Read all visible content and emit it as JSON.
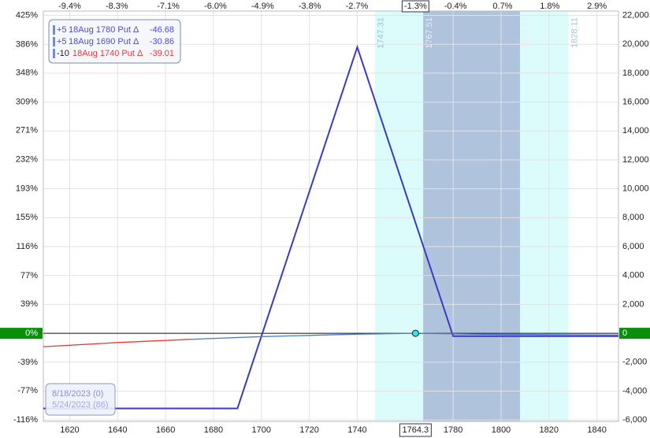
{
  "chart_data": {
    "type": "line",
    "xlim": [
      1609,
      1849
    ],
    "xticks": [
      1620,
      1640,
      1660,
      1680,
      1700,
      1720,
      1740,
      1780,
      1800,
      1820,
      1840
    ],
    "x2lim": [
      -10.015,
      3.403
    ],
    "x2ticks": [
      {
        "value": -9.4,
        "label": "-9.4%"
      },
      {
        "value": -8.3,
        "label": "-8.3%"
      },
      {
        "value": -7.1,
        "label": "-7.1%"
      },
      {
        "value": -6.0,
        "label": "-6.0%"
      },
      {
        "value": -4.9,
        "label": "-4.9%"
      },
      {
        "value": -3.8,
        "label": "-3.8%"
      },
      {
        "value": -2.7,
        "label": "-2.7%"
      },
      {
        "value": -0.4,
        "label": "-0.4%"
      },
      {
        "value": 0.7,
        "label": "0.7%"
      },
      {
        "value": 1.8,
        "label": "1.8%"
      },
      {
        "value": 2.9,
        "label": "2.9%"
      }
    ],
    "ylim": [
      -6100,
      22300
    ],
    "yticks": [
      {
        "value": 22000,
        "label": "22,000"
      },
      {
        "value": 20000,
        "label": "20,000"
      },
      {
        "value": 18000,
        "label": "18,000"
      },
      {
        "value": 16000,
        "label": "16,000"
      },
      {
        "value": 14000,
        "label": "14,000"
      },
      {
        "value": 12000,
        "label": "12,000"
      },
      {
        "value": 10000,
        "label": "10,000"
      },
      {
        "value": 8000,
        "label": "8,000"
      },
      {
        "value": 6000,
        "label": "6,000"
      },
      {
        "value": 4000,
        "label": "4,000"
      },
      {
        "value": 2000,
        "label": "2,000"
      },
      0,
      {
        "value": -2000,
        "label": "-2,000"
      },
      {
        "value": -4000,
        "label": "-4,000"
      },
      {
        "value": -6000,
        "label": "-6,000"
      }
    ],
    "y2lim": [
      -117.8,
      430.8
    ],
    "y2ticks": [
      {
        "value": 425,
        "label": "425%"
      },
      {
        "value": 386,
        "label": "386%"
      },
      {
        "value": 348,
        "label": "348%"
      },
      {
        "value": 309,
        "label": "309%"
      },
      {
        "value": 271,
        "label": "271%"
      },
      {
        "value": 232,
        "label": "232%"
      },
      {
        "value": 193,
        "label": "193%"
      },
      {
        "value": 155,
        "label": "155%"
      },
      {
        "value": 116,
        "label": "116%"
      },
      {
        "value": 77,
        "label": "77%"
      },
      {
        "value": 39,
        "label": "39%"
      },
      {
        "value": 0,
        "label": "0%"
      },
      {
        "value": -39,
        "label": "-39%"
      },
      {
        "value": -77,
        "label": "-77%"
      },
      {
        "value": -116,
        "label": "-116%"
      }
    ],
    "grid": true,
    "bands": [
      {
        "from": 1747.31,
        "to": 1828.11,
        "color": "#dcfbfb"
      },
      {
        "from": 1767.51,
        "to": 1807.91,
        "color": "#b0c3dc"
      }
    ],
    "series": [
      {
        "color": "#3b3bbd",
        "x": [
          1609,
          1690,
          1740,
          1780,
          1849
        ],
        "values": [
          -5200,
          -5200,
          19800,
          -200,
          -200
        ]
      },
      {
        "color": "#e83a3a",
        "x": [
          1609,
          1640,
          1670
        ],
        "values": [
          -930,
          -640,
          -420
        ]
      },
      {
        "color": "#4a7ad2",
        "x": [
          1670,
          1700,
          1740,
          1764.3,
          1800,
          1849
        ],
        "values": [
          -420,
          -230,
          -60,
          0,
          -80,
          -120
        ]
      }
    ],
    "current": {
      "x": 1764.3,
      "value": 0,
      "label": "1764.3",
      "top_label": "-1.3%"
    },
    "legend": [
      {
        "qty": "+5",
        "text": "18Aug 1780 Put Δ",
        "delta": "-46.68",
        "color": "#4a4ad8"
      },
      {
        "qty": "+5",
        "text": "18Aug 1690 Put Δ",
        "delta": "-30.86",
        "color": "#4a4ad8"
      },
      {
        "qty": "-10",
        "text": "18Aug 1740 Put Δ",
        "delta": "-39.01",
        "color": "#e83a3a"
      }
    ],
    "dates": [
      "8/18/2023 (0)",
      "5/24/2023 (86)"
    ]
  }
}
